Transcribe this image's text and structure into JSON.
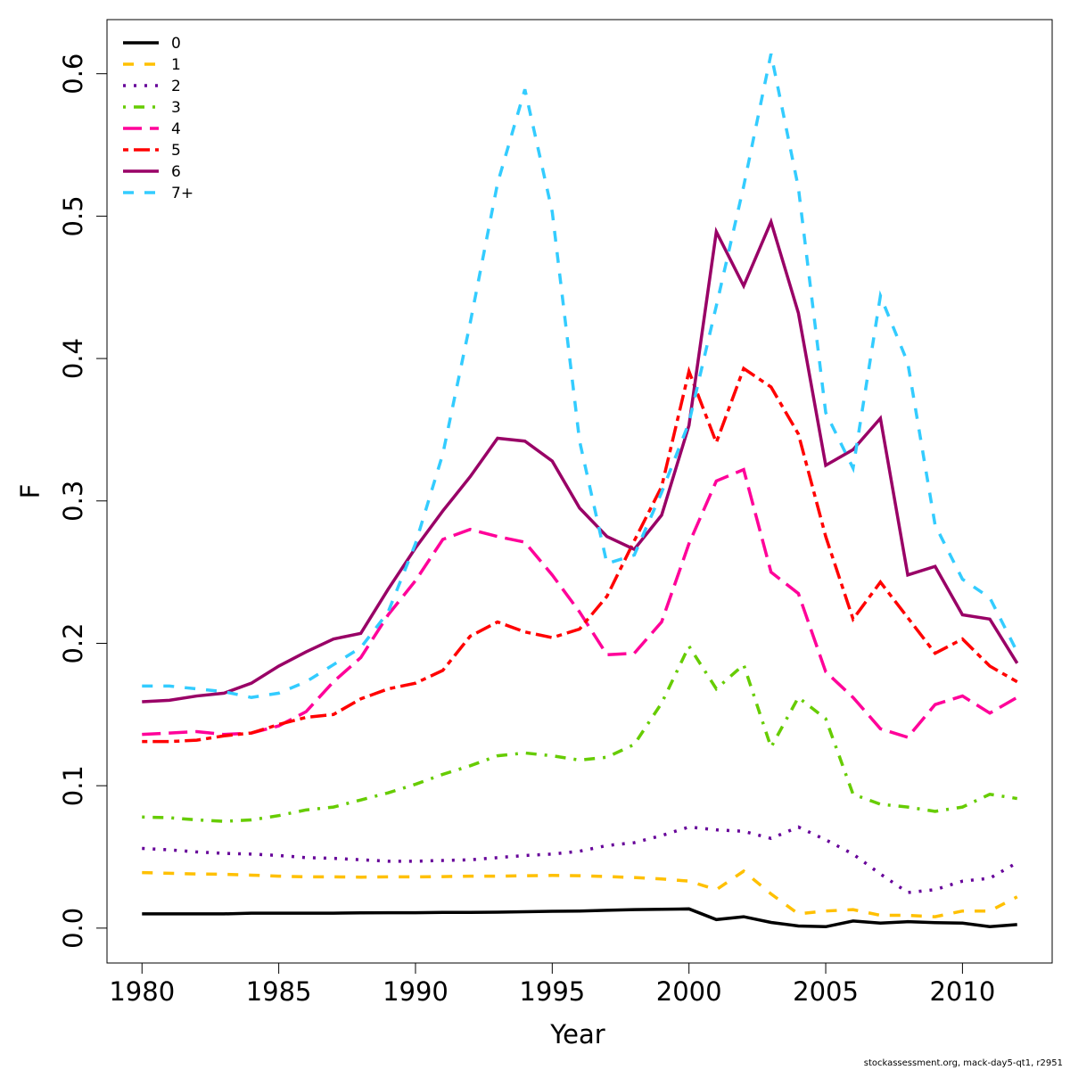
{
  "chart_data": {
    "type": "line",
    "x_label": "Year",
    "y_label": "F",
    "caption": "stockassessment.org, mack-day5-qt1, r2951",
    "x": [
      1980,
      1981,
      1982,
      1983,
      1984,
      1985,
      1986,
      1987,
      1988,
      1989,
      1990,
      1991,
      1992,
      1993,
      1994,
      1995,
      1996,
      1997,
      1998,
      1999,
      2000,
      2001,
      2002,
      2003,
      2004,
      2005,
      2006,
      2007,
      2008,
      2009,
      2010,
      2011,
      2012
    ],
    "xlim": [
      1978.72,
      2013.28
    ],
    "xticks": [
      1980,
      1985,
      1990,
      1995,
      2000,
      2005,
      2010
    ],
    "ylim": [
      -0.0245,
      0.638
    ],
    "yticks": [
      {
        "value": 0,
        "label": "0.0"
      },
      0.1,
      0.2,
      0.3,
      0.4,
      0.5,
      0.6
    ],
    "legend": "top-left",
    "series": [
      {
        "name": "0",
        "color": "#000000",
        "linestyle": "solid",
        "values": [
          0.01,
          0.01,
          0.01,
          0.01,
          0.0105,
          0.0105,
          0.0105,
          0.0105,
          0.0107,
          0.0108,
          0.0108,
          0.011,
          0.011,
          0.0112,
          0.0115,
          0.0118,
          0.012,
          0.0125,
          0.013,
          0.0132,
          0.0135,
          0.006,
          0.008,
          0.004,
          0.0015,
          0.001,
          0.005,
          0.0035,
          0.0045,
          0.0038,
          0.0035,
          0.001,
          0.0025
        ]
      },
      {
        "name": "1",
        "color": "#ffc000",
        "linestyle": "dashed",
        "values": [
          0.039,
          0.0385,
          0.038,
          0.0378,
          0.0372,
          0.0365,
          0.036,
          0.036,
          0.0358,
          0.036,
          0.036,
          0.0362,
          0.0365,
          0.0365,
          0.0368,
          0.037,
          0.0368,
          0.0362,
          0.0355,
          0.0345,
          0.033,
          0.027,
          0.04,
          0.024,
          0.01,
          0.012,
          0.013,
          0.009,
          0.009,
          0.008,
          0.012,
          0.012,
          0.022
        ]
      },
      {
        "name": "2",
        "color": "#660099",
        "linestyle": "dotted",
        "values": [
          0.056,
          0.055,
          0.0535,
          0.0525,
          0.052,
          0.051,
          0.0495,
          0.049,
          0.048,
          0.047,
          0.047,
          0.0475,
          0.048,
          0.0495,
          0.051,
          0.052,
          0.054,
          0.058,
          0.06,
          0.065,
          0.071,
          0.069,
          0.068,
          0.063,
          0.071,
          0.062,
          0.052,
          0.038,
          0.025,
          0.027,
          0.033,
          0.035,
          0.046
        ]
      },
      {
        "name": "3",
        "color": "#66cc00",
        "linestyle": "dotdash",
        "values": [
          0.078,
          0.0775,
          0.076,
          0.075,
          0.076,
          0.079,
          0.083,
          0.085,
          0.09,
          0.095,
          0.101,
          0.108,
          0.114,
          0.121,
          0.123,
          0.121,
          0.118,
          0.12,
          0.129,
          0.158,
          0.198,
          0.168,
          0.185,
          0.127,
          0.162,
          0.147,
          0.094,
          0.087,
          0.085,
          0.082,
          0.085,
          0.094,
          0.091
        ]
      },
      {
        "name": "4",
        "color": "#ff0099",
        "linestyle": "longdash",
        "values": [
          0.136,
          0.137,
          0.138,
          0.136,
          0.137,
          0.142,
          0.152,
          0.173,
          0.19,
          0.22,
          0.244,
          0.273,
          0.28,
          0.275,
          0.271,
          0.248,
          0.222,
          0.192,
          0.193,
          0.215,
          0.27,
          0.314,
          0.322,
          0.25,
          0.235,
          0.18,
          0.162,
          0.14,
          0.134,
          0.157,
          0.163,
          0.151,
          0.162
        ]
      },
      {
        "name": "5",
        "color": "#ff0000",
        "linestyle": "twodash",
        "values": [
          0.131,
          0.131,
          0.132,
          0.135,
          0.137,
          0.143,
          0.148,
          0.15,
          0.161,
          0.168,
          0.172,
          0.181,
          0.205,
          0.215,
          0.208,
          0.204,
          0.21,
          0.233,
          0.272,
          0.31,
          0.391,
          0.341,
          0.393,
          0.38,
          0.347,
          0.275,
          0.217,
          0.243,
          0.218,
          0.193,
          0.203,
          0.184,
          0.173
        ]
      },
      {
        "name": "6",
        "color": "#990066",
        "linestyle": "solid",
        "values": [
          0.159,
          0.16,
          0.163,
          0.165,
          0.172,
          0.184,
          0.194,
          0.203,
          0.207,
          0.238,
          0.267,
          0.293,
          0.317,
          0.344,
          0.342,
          0.328,
          0.295,
          0.275,
          0.266,
          0.29,
          0.353,
          0.489,
          0.451,
          0.496,
          0.432,
          0.325,
          0.336,
          0.358,
          0.248,
          0.254,
          0.22,
          0.217,
          0.186
        ]
      },
      {
        "name": "7+",
        "color": "#33ccff",
        "linestyle": "dashed",
        "values": [
          0.17,
          0.17,
          0.168,
          0.166,
          0.162,
          0.165,
          0.173,
          0.185,
          0.197,
          0.222,
          0.27,
          0.333,
          0.425,
          0.523,
          0.589,
          0.503,
          0.342,
          0.256,
          0.262,
          0.306,
          0.355,
          0.437,
          0.521,
          0.614,
          0.52,
          0.362,
          0.323,
          0.444,
          0.397,
          0.283,
          0.245,
          0.232,
          0.194
        ]
      }
    ]
  }
}
